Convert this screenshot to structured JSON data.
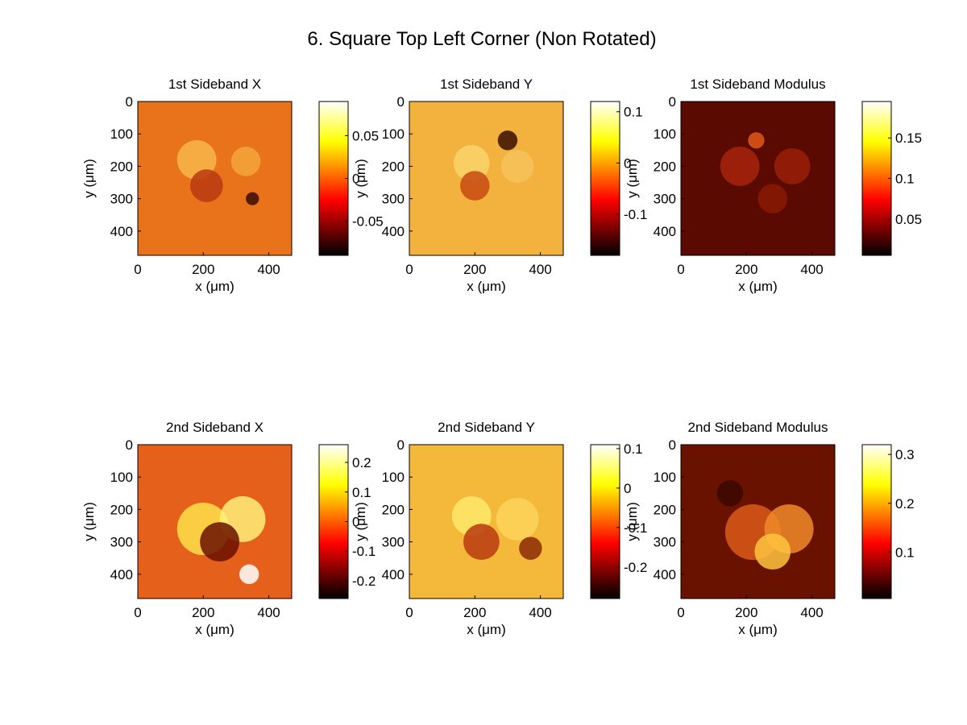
{
  "figure": {
    "title": "6. Square Top Left Corner (Non Rotated)"
  },
  "chart_data": [
    {
      "type": "heatmap",
      "title": "1st Sideband X",
      "xlabel": "x (μm)",
      "ylabel": "y (μm)",
      "xlim": [
        0,
        470
      ],
      "ylim": [
        0,
        475
      ],
      "x_ticks": [
        0,
        200,
        400
      ],
      "y_ticks": [
        0,
        100,
        200,
        300,
        400
      ],
      "colormap": "hot",
      "colorbar": {
        "range": [
          -0.09,
          0.09
        ],
        "ticks": [
          -0.05,
          0,
          0.05
        ],
        "tick_labels": [
          "-0.05",
          "0",
          "0.05"
        ]
      }
    },
    {
      "type": "heatmap",
      "title": "1st Sideband Y",
      "xlabel": "x (μm)",
      "ylabel": "y (μm)",
      "xlim": [
        0,
        470
      ],
      "ylim": [
        0,
        475
      ],
      "x_ticks": [
        0,
        200,
        400
      ],
      "y_ticks": [
        0,
        100,
        200,
        300,
        400
      ],
      "colormap": "hot",
      "colorbar": {
        "range": [
          -0.18,
          0.12
        ],
        "ticks": [
          -0.1,
          0,
          0.1
        ],
        "tick_labels": [
          "-0.1",
          "0",
          "0.1"
        ]
      }
    },
    {
      "type": "heatmap",
      "title": "1st Sideband Modulus",
      "xlabel": "x (μm)",
      "ylabel": "y (μm)",
      "xlim": [
        0,
        470
      ],
      "ylim": [
        0,
        475
      ],
      "x_ticks": [
        0,
        200,
        400
      ],
      "y_ticks": [
        0,
        100,
        200,
        300,
        400
      ],
      "colormap": "hot",
      "colorbar": {
        "range": [
          0.005,
          0.195
        ],
        "ticks": [
          0.05,
          0.1,
          0.15
        ],
        "tick_labels": [
          "0.05",
          "0.1",
          "0.15"
        ]
      }
    },
    {
      "type": "heatmap",
      "title": "2nd Sideband X",
      "xlabel": "x (μm)",
      "ylabel": "y (μm)",
      "xlim": [
        0,
        470
      ],
      "ylim": [
        0,
        475
      ],
      "x_ticks": [
        0,
        200,
        400
      ],
      "y_ticks": [
        0,
        100,
        200,
        300,
        400
      ],
      "colormap": "hot",
      "colorbar": {
        "range": [
          -0.26,
          0.26
        ],
        "ticks": [
          -0.2,
          -0.1,
          0,
          0.1,
          0.2
        ],
        "tick_labels": [
          "-0.2",
          "-0.1",
          "0",
          "0.1",
          "0.2"
        ]
      }
    },
    {
      "type": "heatmap",
      "title": "2nd Sideband Y",
      "xlabel": "x (μm)",
      "ylabel": "y (μm)",
      "xlim": [
        0,
        470
      ],
      "ylim": [
        0,
        475
      ],
      "x_ticks": [
        0,
        200,
        400
      ],
      "y_ticks": [
        0,
        100,
        200,
        300,
        400
      ],
      "colormap": "hot",
      "colorbar": {
        "range": [
          -0.28,
          0.11
        ],
        "ticks": [
          -0.2,
          -0.1,
          0,
          0.1
        ],
        "tick_labels": [
          "-0.2",
          "-0.1",
          "0",
          "0.1"
        ]
      }
    },
    {
      "type": "heatmap",
      "title": "2nd Sideband Modulus",
      "xlabel": "x (μm)",
      "ylabel": "y (μm)",
      "xlim": [
        0,
        470
      ],
      "ylim": [
        0,
        475
      ],
      "x_ticks": [
        0,
        200,
        400
      ],
      "y_ticks": [
        0,
        100,
        200,
        300,
        400
      ],
      "colormap": "hot",
      "colorbar": {
        "range": [
          0.005,
          0.32
        ],
        "ticks": [
          0.1,
          0.2,
          0.3
        ],
        "tick_labels": [
          "0.1",
          "0.2",
          "0.3"
        ]
      }
    }
  ]
}
